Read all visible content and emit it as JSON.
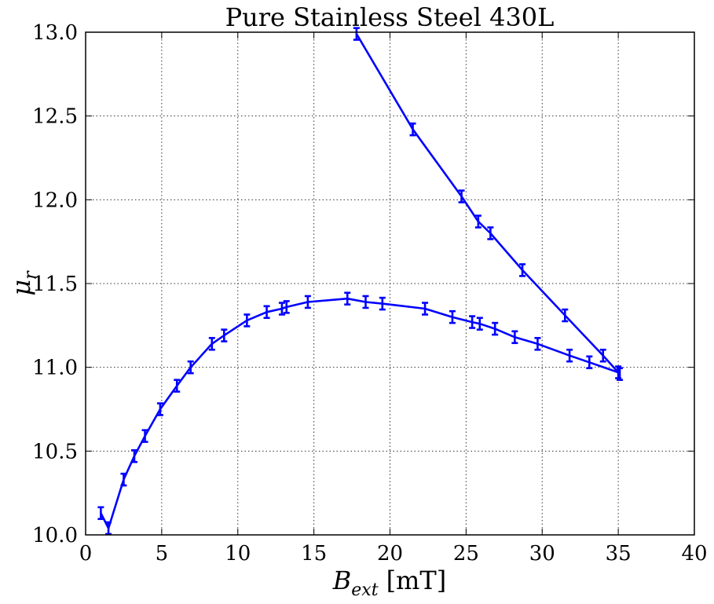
{
  "chart_data": {
    "type": "line",
    "title": "Pure Stainless Steel 430L",
    "xlabel": {
      "symbol": "B",
      "subscript": "ext",
      "unit": "[mT]"
    },
    "ylabel": {
      "symbol": "μ",
      "subscript": "r"
    },
    "xlim": [
      0,
      40
    ],
    "ylim": [
      10.0,
      13.0
    ],
    "xticks": [
      "0",
      "5",
      "10",
      "15",
      "20",
      "25",
      "30",
      "35",
      "40"
    ],
    "yticks": [
      "10.0",
      "10.5",
      "11.0",
      "11.5",
      "12.0",
      "12.5",
      "13.0"
    ],
    "grid": true,
    "series_color": "#0000ff",
    "series": [
      {
        "x": [
          1.0,
          1.5,
          2.5,
          3.2,
          3.9,
          4.9,
          6.0,
          6.9,
          8.3,
          9.1,
          10.6,
          11.9,
          12.9,
          13.2,
          14.6,
          17.2,
          18.4,
          19.5,
          22.3,
          24.1,
          25.4,
          25.9,
          26.9,
          28.2,
          29.7,
          31.8,
          33.1,
          35.0
        ],
        "y": [
          10.13,
          10.04,
          10.33,
          10.47,
          10.59,
          10.75,
          10.89,
          11.0,
          11.14,
          11.19,
          11.28,
          11.33,
          11.35,
          11.36,
          11.39,
          11.41,
          11.39,
          11.38,
          11.35,
          11.3,
          11.27,
          11.26,
          11.23,
          11.18,
          11.14,
          11.07,
          11.03,
          10.97
        ],
        "yerr": 0.035
      },
      {
        "x": [
          35.1,
          34.0,
          31.5,
          28.7,
          26.6,
          25.8,
          24.7,
          21.5,
          17.8
        ],
        "y": [
          10.96,
          11.07,
          11.31,
          11.58,
          11.8,
          11.87,
          12.02,
          12.42,
          12.99
        ],
        "yerr": 0.035
      }
    ]
  }
}
